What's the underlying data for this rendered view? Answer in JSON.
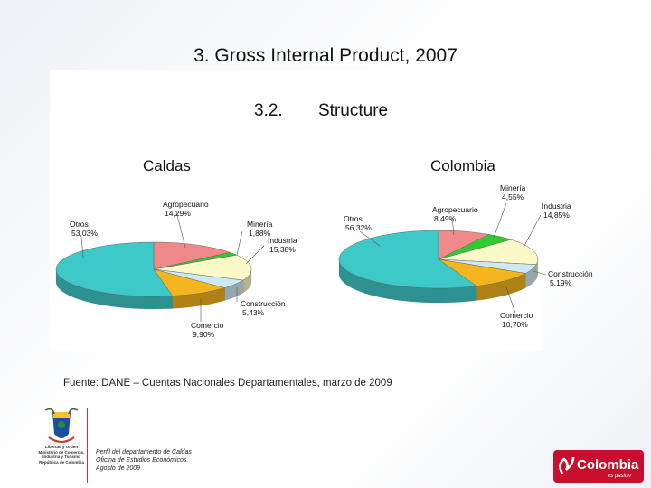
{
  "slide": {
    "title": "3. Gross Internal Product, 2007",
    "section_number": "3.2.",
    "section_title": "Structure"
  },
  "chart_data": [
    {
      "type": "pie",
      "title": "Caldas",
      "slices": [
        {
          "label": "Agropecuario",
          "value_text": "14,29%",
          "value": 14.29,
          "color": "#f08a8a"
        },
        {
          "label": "Minería",
          "value_text": "1,88%",
          "value": 1.88,
          "color": "#2ecc2e"
        },
        {
          "label": "Industria",
          "value_text": "15,38%",
          "value": 15.38,
          "color": "#fbf9c8"
        },
        {
          "label": "Construcción",
          "value_text": "5,43%",
          "value": 5.43,
          "color": "#cfe9f3"
        },
        {
          "label": "Comercio",
          "value_text": "9,90%",
          "value": 9.9,
          "color": "#f4b51e"
        },
        {
          "label": "Otros",
          "value_text": "53,03%",
          "value": 53.03,
          "color": "#3ec9c9"
        }
      ]
    },
    {
      "type": "pie",
      "title": "Colombia",
      "slices": [
        {
          "label": "Agropecuario",
          "value_text": "8,49%",
          "value": 8.49,
          "color": "#f08a8a"
        },
        {
          "label": "Minería",
          "value_text": "4,55%",
          "value": 4.55,
          "color": "#2ecc2e"
        },
        {
          "label": "Industria",
          "value_text": "14,85%",
          "value": 14.85,
          "color": "#fbf9c8"
        },
        {
          "label": "Construcción",
          "value_text": "5,19%",
          "value": 5.19,
          "color": "#cfe9f3"
        },
        {
          "label": "Comercio",
          "value_text": "10,70%",
          "value": 10.7,
          "color": "#f4b51e"
        },
        {
          "label": "Otros",
          "value_text": "56,32%",
          "value": 56.32,
          "color": "#3ec9c9"
        }
      ]
    }
  ],
  "source": "Fuente: DANE – Cuentas Nacionales Departamentales, marzo de 2009",
  "footer": {
    "note_lines": [
      "Perfil del departamento de Caldas",
      "Oficina de Estudios Económicos.",
      "Agosto de 2009"
    ],
    "ministry_lines": [
      "Libertad y Orden",
      "Ministerio de Comercio,",
      "Industria y Turismo",
      "República de Colombia"
    ],
    "brand": "Colombia",
    "brand_sub": "es pasión",
    "brand_color": "#c8102e"
  }
}
